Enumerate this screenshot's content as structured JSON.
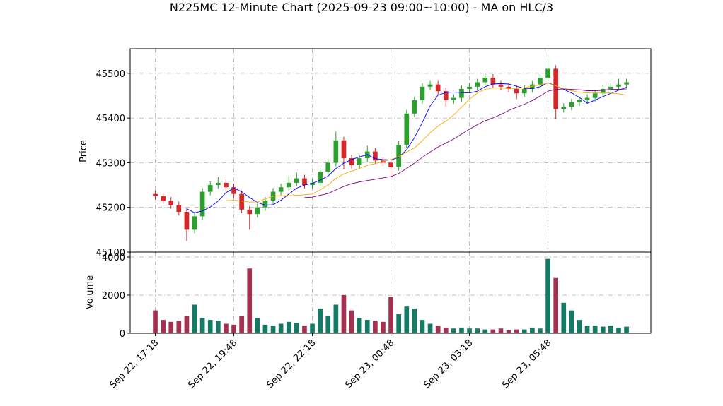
{
  "chart_data": {
    "type": "candlestick",
    "title": "N225MC 12-Minute Chart (2025-09-23 09:00~10:00) - MA on HLC/3",
    "ylabel": "Price",
    "volume_label": "Volume",
    "categories": [
      "Sep 22, 17:18",
      null,
      null,
      null,
      null,
      null,
      null,
      null,
      null,
      null,
      "Sep 22, 19:48",
      null,
      null,
      null,
      null,
      null,
      null,
      null,
      null,
      null,
      "Sep 22, 22:18",
      null,
      null,
      null,
      null,
      null,
      null,
      null,
      null,
      null,
      "Sep 23, 00:48",
      null,
      null,
      null,
      null,
      null,
      null,
      null,
      null,
      null,
      "Sep 23, 03:18",
      null,
      null,
      null,
      null,
      null,
      null,
      null,
      null,
      null,
      "Sep 23, 05:48",
      null,
      null,
      null,
      null,
      null,
      null,
      null,
      null,
      null,
      null
    ],
    "open": [
      45230,
      45225,
      45215,
      45205,
      45190,
      45150,
      45180,
      45235,
      45250,
      45255,
      45245,
      45230,
      45195,
      45185,
      45200,
      45215,
      45235,
      45245,
      45255,
      45265,
      45250,
      45255,
      45280,
      45300,
      45350,
      45310,
      45295,
      45310,
      45325,
      45305,
      45300,
      45290,
      45340,
      45410,
      45440,
      45470,
      45475,
      45460,
      45440,
      45445,
      45465,
      45470,
      45480,
      45490,
      45475,
      45470,
      45465,
      45455,
      45465,
      45475,
      45490,
      45510,
      45420,
      45425,
      45435,
      45440,
      45445,
      45455,
      45465,
      45470,
      45475
    ],
    "high": [
      45238,
      45233,
      45223,
      45213,
      45198,
      45188,
      45243,
      45258,
      45268,
      45263,
      45253,
      45238,
      45203,
      45208,
      45223,
      45243,
      45253,
      45270,
      45278,
      45273,
      45263,
      45288,
      45308,
      45370,
      45358,
      45318,
      45318,
      45338,
      45333,
      45313,
      45308,
      45348,
      45418,
      45448,
      45478,
      45483,
      45483,
      45468,
      45453,
      45473,
      45478,
      45488,
      45500,
      45498,
      45483,
      45478,
      45473,
      45473,
      45483,
      45498,
      45532,
      45518,
      45433,
      45443,
      45448,
      45453,
      45463,
      45473,
      45478,
      45488,
      45488
    ],
    "low": [
      45217,
      45207,
      45197,
      45182,
      45125,
      45142,
      45172,
      45227,
      45242,
      45237,
      45222,
      45187,
      45150,
      45177,
      45192,
      45207,
      45227,
      45237,
      45247,
      45242,
      45242,
      45247,
      45272,
      45292,
      45285,
      45287,
      45287,
      45302,
      45297,
      45292,
      45270,
      45282,
      45332,
      45402,
      45432,
      45462,
      45452,
      45425,
      45432,
      45437,
      45457,
      45462,
      45472,
      45467,
      45462,
      45457,
      45442,
      45447,
      45457,
      45467,
      45482,
      45398,
      45412,
      45417,
      45427,
      45432,
      45437,
      45447,
      45457,
      45462,
      45467
    ],
    "close": [
      45225,
      45215,
      45205,
      45190,
      45150,
      45180,
      45235,
      45250,
      45255,
      45245,
      45230,
      45195,
      45185,
      45200,
      45215,
      45235,
      45245,
      45255,
      45265,
      45250,
      45255,
      45280,
      45300,
      45350,
      45310,
      45295,
      45310,
      45325,
      45305,
      45300,
      45290,
      45340,
      45410,
      45440,
      45470,
      45475,
      45460,
      45440,
      45445,
      45465,
      45470,
      45480,
      45490,
      45475,
      45470,
      45465,
      45455,
      45465,
      45475,
      45490,
      45510,
      45420,
      45425,
      45435,
      45440,
      45445,
      45455,
      45465,
      45470,
      45475,
      45480
    ],
    "volume": [
      1200,
      700,
      600,
      650,
      900,
      1500,
      800,
      700,
      650,
      500,
      450,
      900,
      3400,
      800,
      450,
      400,
      500,
      600,
      550,
      400,
      500,
      1300,
      900,
      1500,
      2000,
      1200,
      800,
      700,
      650,
      600,
      1900,
      1000,
      1400,
      1300,
      700,
      500,
      400,
      300,
      250,
      300,
      250,
      250,
      200,
      200,
      250,
      150,
      200,
      200,
      300,
      250,
      3900,
      2900,
      1600,
      1200,
      700,
      400,
      400,
      350,
      400,
      300,
      350
    ],
    "up_color": "#2ca02c",
    "down_color": "#d62728",
    "volume_up_color": "#137a63",
    "volume_down_color": "#a3304f",
    "ma": [
      {
        "color": "#0000ff",
        "values": [
          null,
          null,
          null,
          null,
          45197,
          45188,
          45192,
          45201,
          45214,
          45233,
          45243,
          45235,
          45222,
          45211,
          45205,
          45206,
          45216,
          45230,
          45243,
          45250,
          45254,
          45261,
          45270,
          45287,
          45299,
          45307,
          45313,
          45318,
          45309,
          45307,
          45306,
          45312,
          45329,
          45356,
          45390,
          45427,
          45451,
          45457,
          45458,
          45457,
          45456,
          45460,
          45470,
          45476,
          45477,
          45476,
          45471,
          45466,
          45466,
          45470,
          45479,
          45472,
          45464,
          45456,
          45446,
          45433,
          45440,
          45448,
          45455,
          45462,
          45469
        ]
      },
      {
        "color": "#ffa500",
        "values": [
          null,
          null,
          null,
          null,
          null,
          null,
          null,
          null,
          null,
          45215,
          45216,
          45214,
          45212,
          45212,
          45219,
          45225,
          45226,
          45226,
          45227,
          45228,
          45230,
          45239,
          45250,
          45265,
          45275,
          45281,
          45287,
          45294,
          45298,
          45303,
          45307,
          45313,
          45324,
          45333,
          45349,
          45367,
          45382,
          45393,
          45407,
          45424,
          45442,
          45456,
          45464,
          45467,
          45467,
          45466,
          45466,
          45468,
          45471,
          45474,
          45478,
          45472,
          45465,
          45461,
          45458,
          45456,
          45456,
          45456,
          45456,
          45454,
          45451
        ]
      },
      {
        "color": "#800080",
        "values": [
          null,
          null,
          null,
          null,
          null,
          null,
          null,
          null,
          null,
          null,
          null,
          null,
          null,
          null,
          null,
          null,
          null,
          null,
          null,
          45222,
          45223,
          45227,
          45231,
          45239,
          45247,
          45253,
          45257,
          45260,
          45263,
          45266,
          45269,
          45276,
          45287,
          45299,
          45312,
          45324,
          45335,
          45344,
          45353,
          45364,
          45375,
          45385,
          45394,
          45400,
          45408,
          45417,
          45424,
          45431,
          45439,
          45449,
          45460,
          45464,
          45465,
          45464,
          45463,
          45461,
          45461,
          45462,
          45464,
          45464,
          45465
        ]
      }
    ],
    "xlim": [
      -3.2,
      63.1
    ],
    "ylim": [
      45100,
      45555
    ],
    "yticks": [
      45100,
      45200,
      45300,
      45400,
      45500
    ],
    "volume_ylim": [
      0,
      4260
    ],
    "volume_yticks": [
      0,
      2000,
      4000
    ],
    "grid": true
  }
}
